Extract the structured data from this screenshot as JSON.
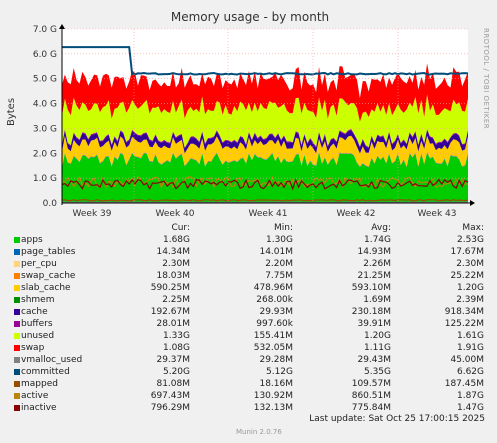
{
  "chart_data": {
    "type": "area",
    "title": "Memory usage - by month",
    "ylabel": "Bytes",
    "ylim": [
      0,
      7.0
    ],
    "y_unit": "G",
    "y_ticks": [
      "0.0",
      "1.0 G",
      "2.0 G",
      "3.0 G",
      "4.0 G",
      "5.0 G",
      "6.0 G",
      "7.0 G"
    ],
    "x_ticks": [
      "Week 39",
      "Week 40",
      "Week 41",
      "Week 42",
      "Week 43"
    ],
    "grid": true,
    "side_label": "RRDTOOL / TOBI OETIKER",
    "stats_headers": {
      "cur": "Cur:",
      "min": "Min:",
      "avg": "Avg:",
      "max": "Max:"
    },
    "series": [
      {
        "name": "apps",
        "color": "#00cc00",
        "cur": "1.68G",
        "min": "1.30G",
        "avg": "1.74G",
        "max": "2.53G"
      },
      {
        "name": "page_tables",
        "color": "#0066b3",
        "cur": "14.34M",
        "min": "14.01M",
        "avg": "14.93M",
        "max": "17.67M"
      },
      {
        "name": "per_cpu",
        "color": "#ffd27f",
        "cur": "2.30M",
        "min": "2.20M",
        "avg": "2.26M",
        "max": "2.30M"
      },
      {
        "name": "swap_cache",
        "color": "#ff8000",
        "cur": "18.03M",
        "min": "7.75M",
        "avg": "21.25M",
        "max": "25.22M"
      },
      {
        "name": "slab_cache",
        "color": "#ffcc00",
        "cur": "590.25M",
        "min": "478.96M",
        "avg": "593.10M",
        "max": "1.20G"
      },
      {
        "name": "shmem",
        "color": "#008f00",
        "cur": "2.25M",
        "min": "268.00k",
        "avg": "1.69M",
        "max": "2.39M"
      },
      {
        "name": "cache",
        "color": "#330099",
        "cur": "192.67M",
        "min": "29.93M",
        "avg": "230.18M",
        "max": "918.34M"
      },
      {
        "name": "buffers",
        "color": "#990099",
        "cur": "28.01M",
        "min": "997.60k",
        "avg": "39.91M",
        "max": "125.22M"
      },
      {
        "name": "unused",
        "color": "#ccff00",
        "cur": "1.33G",
        "min": "155.41M",
        "avg": "1.20G",
        "max": "1.61G"
      },
      {
        "name": "swap",
        "color": "#ff0000",
        "cur": "1.08G",
        "min": "532.05M",
        "avg": "1.11G",
        "max": "1.91G"
      },
      {
        "name": "vmalloc_used",
        "color": "#808080",
        "cur": "29.37M",
        "min": "29.28M",
        "avg": "29.43M",
        "max": "45.00M"
      },
      {
        "name": "committed",
        "color": "#014d79",
        "cur": "5.20G",
        "min": "5.12G",
        "avg": "5.35G",
        "max": "6.62G"
      },
      {
        "name": "mapped",
        "color": "#994c00",
        "cur": "81.08M",
        "min": "18.16M",
        "avg": "109.57M",
        "max": "187.45M"
      },
      {
        "name": "active",
        "color": "#b8860b",
        "cur": "697.43M",
        "min": "130.92M",
        "avg": "860.51M",
        "max": "1.87G"
      },
      {
        "name": "inactive",
        "color": "#8b0000",
        "cur": "796.29M",
        "min": "132.13M",
        "avg": "775.84M",
        "max": "1.47G"
      }
    ]
  },
  "footer": {
    "last_update": "Last update: Sat Oct 25 17:00:15 2025",
    "munin_version": "Munin 2.0.76"
  }
}
